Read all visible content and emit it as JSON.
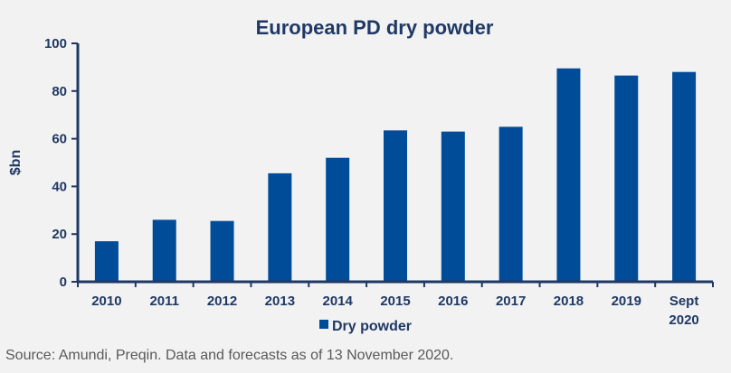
{
  "chart_data": {
    "type": "bar",
    "title": "European PD dry powder",
    "ylabel": "$bn",
    "xlabel": "",
    "categories": [
      [
        "2010"
      ],
      [
        "2011"
      ],
      [
        "2012"
      ],
      [
        "2013"
      ],
      [
        "2014"
      ],
      [
        "2015"
      ],
      [
        "2016"
      ],
      [
        "2017"
      ],
      [
        "2018"
      ],
      [
        "2019"
      ],
      [
        "Sept",
        "2020"
      ]
    ],
    "series": [
      {
        "name": "Dry powder",
        "values": [
          17,
          26,
          25.5,
          45.5,
          52,
          63.5,
          63,
          65,
          89.5,
          86.5,
          88
        ]
      }
    ],
    "ylim": [
      0,
      100
    ],
    "yticks": [
      0,
      20,
      40,
      60,
      80,
      100
    ],
    "grid": false,
    "legend": "bottom-center",
    "colors": {
      "bar": "#004c99",
      "axis": "#1f3864",
      "text": "#1f3864"
    }
  },
  "source": "Source: Amundi, Preqin. Data and forecasts as of 13 November 2020."
}
